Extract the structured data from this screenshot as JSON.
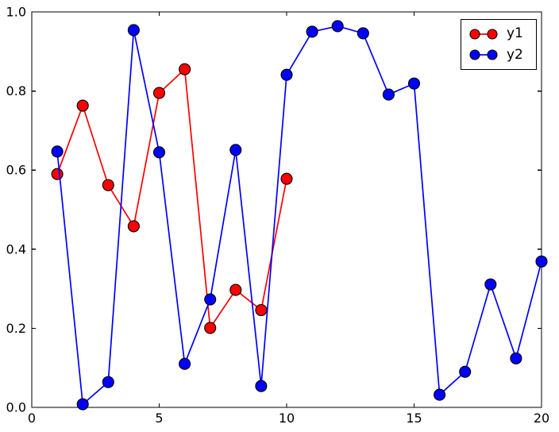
{
  "chart_data": {
    "type": "line",
    "title": "",
    "xlabel": "",
    "ylabel": "",
    "xlim": [
      0,
      20
    ],
    "ylim": [
      0.0,
      1.0
    ],
    "xticks": [
      0,
      5,
      10,
      15,
      20
    ],
    "xtick_labels": [
      "0",
      "5",
      "10",
      "15",
      "20"
    ],
    "yticks": [
      0.0,
      0.2,
      0.4,
      0.6,
      0.8,
      1.0
    ],
    "ytick_labels": [
      "0.0",
      "0.2",
      "0.4",
      "0.6",
      "0.8",
      "1.0"
    ],
    "grid": false,
    "legend_position": "upper right",
    "marker": "circle",
    "marker_edge_color": "#000000",
    "frame_color": "#000000",
    "background_color": "#ffffff",
    "series": [
      {
        "name": "y1",
        "color": "#ff0000",
        "x": [
          1,
          2,
          3,
          4,
          5,
          6,
          7,
          8,
          9,
          10
        ],
        "values": [
          0.59,
          0.763,
          0.562,
          0.458,
          0.795,
          0.855,
          0.201,
          0.297,
          0.246,
          0.578
        ]
      },
      {
        "name": "y2",
        "color": "#0000ff",
        "x": [
          1,
          2,
          3,
          4,
          5,
          6,
          7,
          8,
          9,
          10,
          11,
          12,
          13,
          14,
          15,
          16,
          17,
          18,
          19,
          20
        ],
        "values": [
          0.647,
          0.008,
          0.064,
          0.954,
          0.645,
          0.11,
          0.273,
          0.651,
          0.054,
          0.841,
          0.95,
          0.964,
          0.946,
          0.791,
          0.819,
          0.032,
          0.09,
          0.311,
          0.124,
          0.369
        ]
      }
    ]
  }
}
